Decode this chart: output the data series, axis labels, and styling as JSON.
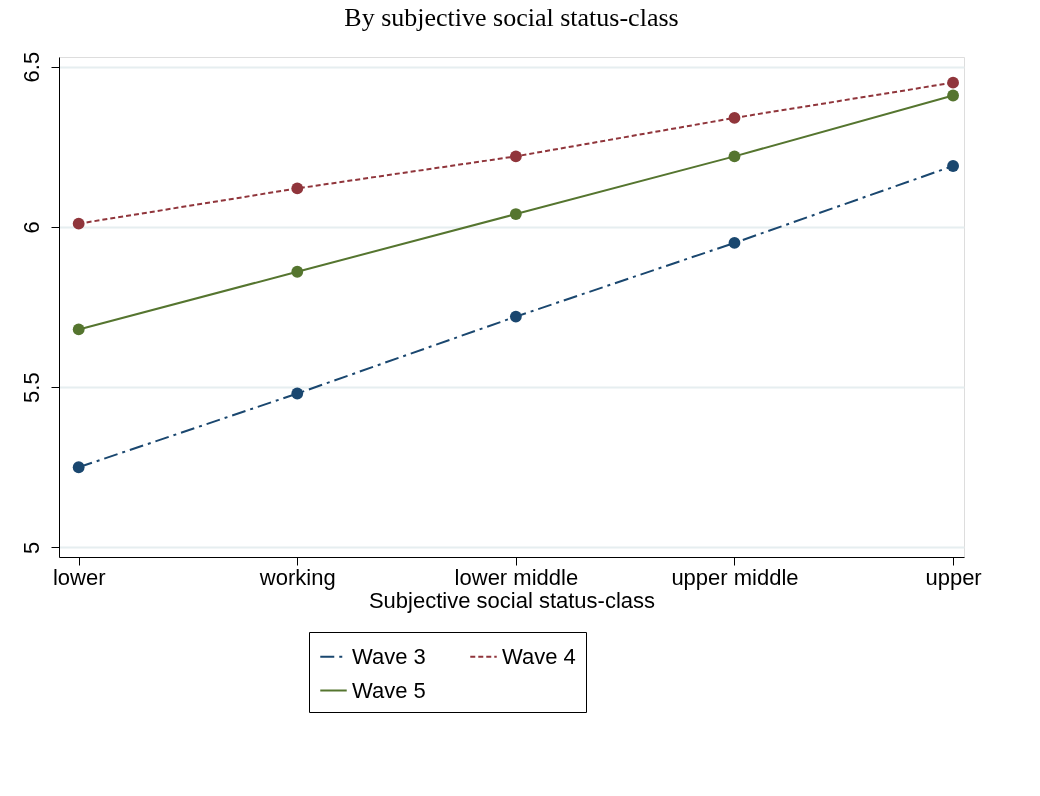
{
  "chart_data": {
    "type": "line",
    "title": "By subjective social status-class",
    "xlabel": "Subjective social status-class",
    "categories": [
      "lower",
      "working",
      "lower middle",
      "upper middle",
      "upper"
    ],
    "series": [
      {
        "name": "Wave 3",
        "color": "#1a476f",
        "line_style": "dashed",
        "values": [
          5.25,
          5.48,
          5.72,
          5.95,
          6.19
        ]
      },
      {
        "name": "Wave 4",
        "color": "#90353b",
        "line_style": "dotted",
        "values": [
          6.01,
          6.12,
          6.22,
          6.34,
          6.45
        ]
      },
      {
        "name": "Wave 5",
        "color": "#55752f",
        "line_style": "solid",
        "values": [
          5.68,
          5.86,
          6.04,
          6.22,
          6.41
        ]
      }
    ],
    "ylim": [
      4.97,
      6.53
    ],
    "yticks": [
      5,
      5.5,
      6,
      6.5
    ],
    "grid": "y",
    "legend": "bottom",
    "marker": "circle"
  }
}
